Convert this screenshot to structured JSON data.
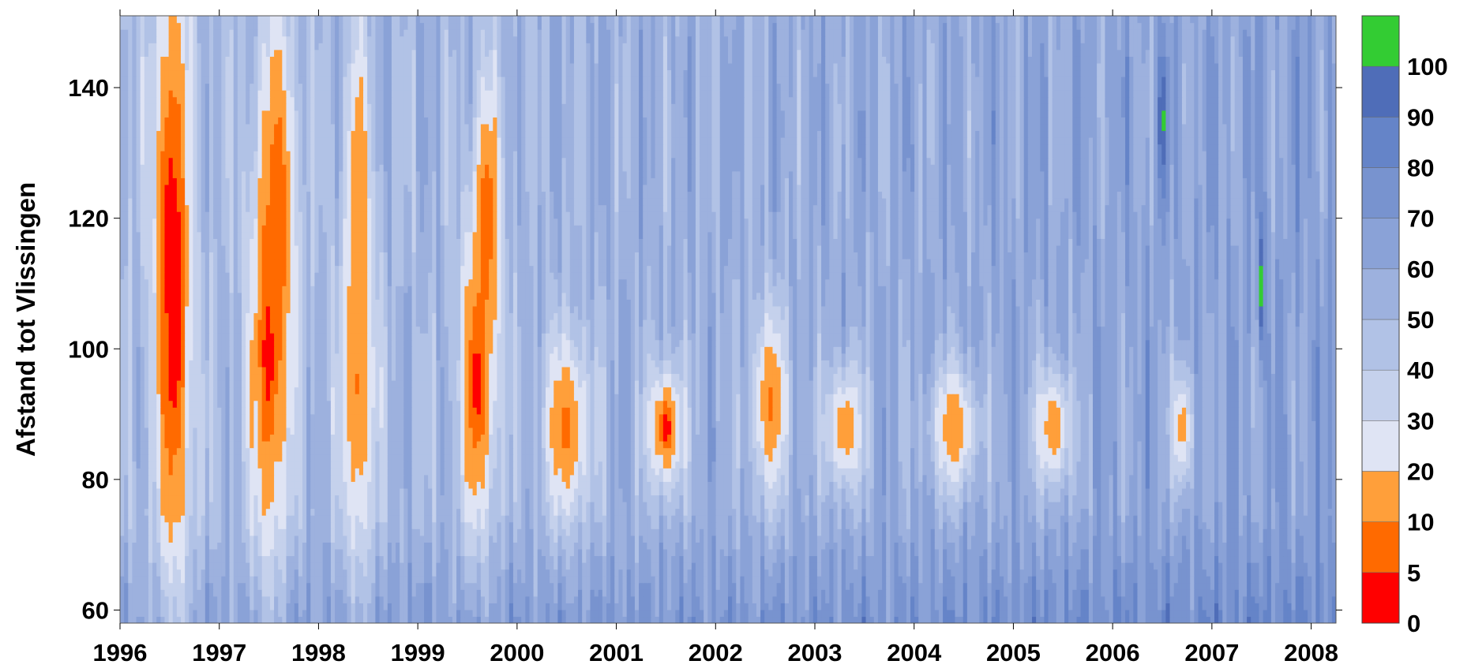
{
  "chart_data": {
    "type": "heatmap",
    "title": "",
    "xlabel": "",
    "ylabel": "Afstand tot Vlissingen",
    "x_ticks": [
      "1996",
      "1997",
      "1998",
      "1999",
      "2000",
      "2001",
      "2002",
      "2003",
      "2004",
      "2005",
      "2006",
      "2007",
      "2008"
    ],
    "y_ticks": [
      60,
      80,
      100,
      120,
      140
    ],
    "xlim": [
      1996.0,
      2008.25
    ],
    "ylim": [
      58,
      151
    ],
    "colorbar": {
      "levels": [
        0,
        5,
        10,
        20,
        30,
        40,
        50,
        60,
        70,
        80,
        90,
        100,
        110
      ],
      "tick_labels": [
        "0",
        "5",
        "10",
        "20",
        "30",
        "40",
        "50",
        "60",
        "70",
        "80",
        "90",
        "100"
      ],
      "colors": [
        "#ff0000",
        "#ff6a00",
        "#ff9f3a",
        "#dfe4f4",
        "#c5d1ec",
        "#b1c2e6",
        "#9db1de",
        "#8aa2d7",
        "#7893cf",
        "#6584c8",
        "#4f6db8",
        "#33cc33"
      ]
    },
    "hotspots": [
      {
        "x": 1996.55,
        "y": 105,
        "wx": 0.18,
        "wy": 45,
        "value": 1
      },
      {
        "x": 1996.5,
        "y": 120,
        "wx": 0.15,
        "wy": 35,
        "value": 4
      },
      {
        "x": 1997.5,
        "y": 100,
        "wx": 0.2,
        "wy": 35,
        "value": 2
      },
      {
        "x": 1997.6,
        "y": 122,
        "wx": 0.18,
        "wy": 30,
        "value": 6
      },
      {
        "x": 1998.4,
        "y": 95,
        "wx": 0.18,
        "wy": 30,
        "value": 9
      },
      {
        "x": 1998.4,
        "y": 125,
        "wx": 0.12,
        "wy": 25,
        "value": 12
      },
      {
        "x": 1999.6,
        "y": 95,
        "wx": 0.2,
        "wy": 25,
        "value": 3
      },
      {
        "x": 1999.7,
        "y": 120,
        "wx": 0.15,
        "wy": 22,
        "value": 5
      },
      {
        "x": 2000.5,
        "y": 88,
        "wx": 0.25,
        "wy": 15,
        "value": 8
      },
      {
        "x": 2001.5,
        "y": 88,
        "wx": 0.18,
        "wy": 10,
        "value": 3
      },
      {
        "x": 2002.55,
        "y": 92,
        "wx": 0.2,
        "wy": 15,
        "value": 9
      },
      {
        "x": 2003.3,
        "y": 88,
        "wx": 0.2,
        "wy": 10,
        "value": 12
      },
      {
        "x": 2004.4,
        "y": 88,
        "wx": 0.25,
        "wy": 10,
        "value": 11
      },
      {
        "x": 2005.4,
        "y": 88,
        "wx": 0.2,
        "wy": 10,
        "value": 13
      },
      {
        "x": 2006.7,
        "y": 88,
        "wx": 0.12,
        "wy": 10,
        "value": 15
      },
      {
        "x": 2006.5,
        "y": 135,
        "wx": 0.04,
        "wy": 10,
        "value": 105
      },
      {
        "x": 2007.5,
        "y": 110,
        "wx": 0.03,
        "wy": 10,
        "value": 105
      }
    ]
  }
}
